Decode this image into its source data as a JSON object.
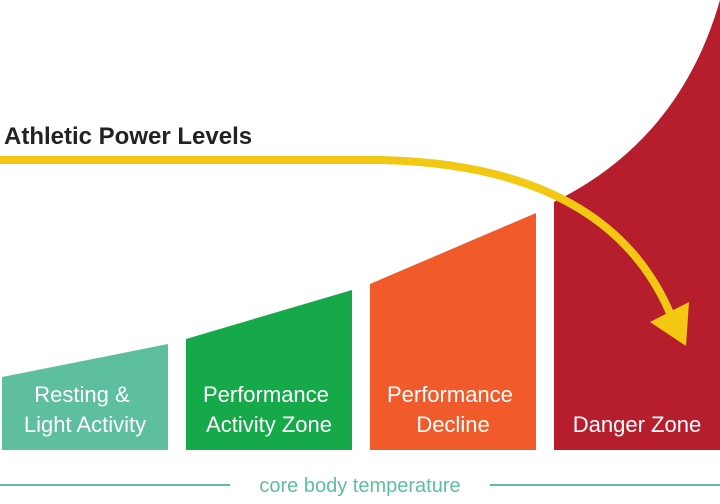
{
  "title": "Athletic Power Levels",
  "zones": [
    {
      "lines": [
        "Resting &",
        "Light Activity"
      ]
    },
    {
      "lines": [
        "Performance",
        "Activity Zone"
      ]
    },
    {
      "lines": [
        "Performance",
        "Decline"
      ]
    },
    {
      "lines": [
        "Danger Zone"
      ]
    }
  ],
  "axis_label": "core body temperature"
}
